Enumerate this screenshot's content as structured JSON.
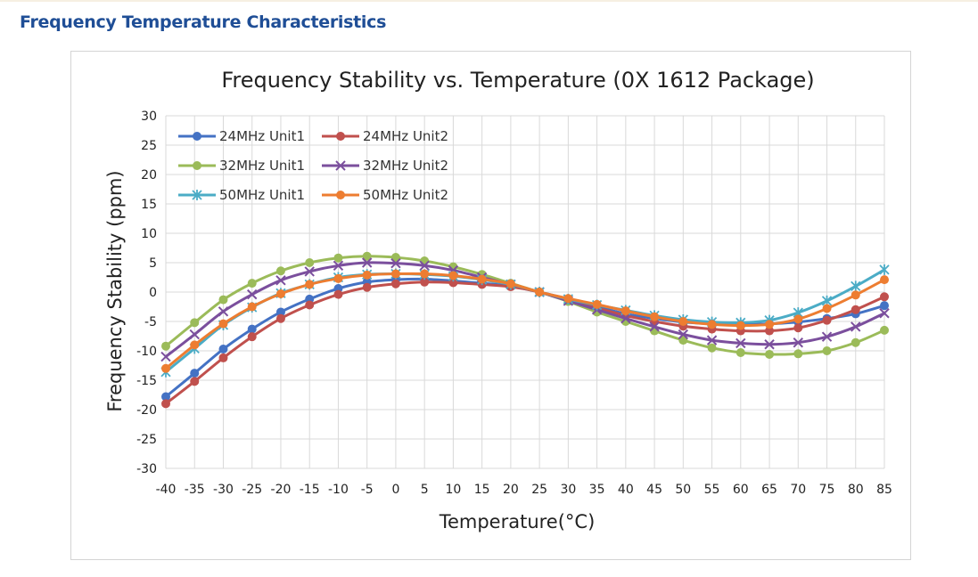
{
  "section": {
    "title": "Frequency Temperature Characteristics"
  },
  "chart_data": {
    "type": "line",
    "title": "Frequency Stability vs. Temperature (0X 1612 Package)",
    "xlabel": "Temperature(°C)",
    "ylabel": "Frequency Stability (ppm)",
    "ylim": [
      -30,
      30
    ],
    "yticks": [
      "30",
      "25",
      "20",
      "15",
      "10",
      "5",
      "0",
      "-5",
      "-10",
      "-15",
      "-20",
      "-25",
      "-30"
    ],
    "x": [
      -40,
      -35,
      -30,
      -25,
      -20,
      -15,
      -10,
      -5,
      0,
      5,
      10,
      15,
      20,
      25,
      30,
      35,
      40,
      45,
      50,
      55,
      60,
      65,
      70,
      75,
      80,
      85
    ],
    "grid": true,
    "legend_position": "top-left",
    "series": [
      {
        "name": "24MHz Unit1",
        "color": "#4472c4",
        "marker": "circle",
        "values": [
          -17.8,
          -13.8,
          -9.7,
          -6.3,
          -3.4,
          -1.2,
          0.6,
          1.7,
          2.1,
          2.2,
          1.9,
          1.5,
          1.0,
          0.0,
          -1.2,
          -2.5,
          -3.7,
          -4.5,
          -5.1,
          -5.4,
          -5.5,
          -5.4,
          -5.1,
          -4.5,
          -3.7,
          -2.3
        ]
      },
      {
        "name": "24MHz Unit2",
        "color": "#c0504d",
        "marker": "circle",
        "values": [
          -19.0,
          -15.2,
          -11.2,
          -7.6,
          -4.5,
          -2.2,
          -0.4,
          0.8,
          1.4,
          1.7,
          1.6,
          1.3,
          0.9,
          0.0,
          -1.4,
          -2.7,
          -4.0,
          -5.0,
          -5.8,
          -6.3,
          -6.6,
          -6.6,
          -6.1,
          -4.8,
          -3.0,
          -0.8
        ]
      },
      {
        "name": "32MHz Unit1",
        "color": "#9bbb59",
        "marker": "circle",
        "values": [
          -9.2,
          -5.2,
          -1.3,
          1.5,
          3.6,
          5.0,
          5.8,
          6.1,
          5.9,
          5.3,
          4.3,
          3.0,
          1.5,
          0.0,
          -1.6,
          -3.4,
          -5.0,
          -6.6,
          -8.2,
          -9.5,
          -10.3,
          -10.6,
          -10.5,
          -10.0,
          -8.6,
          -6.5
        ]
      },
      {
        "name": "32MHz Unit2",
        "color": "#7b4f9d",
        "marker": "x",
        "values": [
          -11.0,
          -7.2,
          -3.3,
          -0.4,
          2.0,
          3.5,
          4.5,
          5.0,
          4.9,
          4.5,
          3.7,
          2.5,
          1.3,
          0.0,
          -1.5,
          -3.0,
          -4.5,
          -5.9,
          -7.2,
          -8.2,
          -8.7,
          -8.9,
          -8.6,
          -7.6,
          -5.9,
          -3.6
        ]
      },
      {
        "name": "50MHz Unit1",
        "color": "#4bacc6",
        "marker": "star",
        "values": [
          -13.6,
          -9.6,
          -5.6,
          -2.6,
          -0.2,
          1.3,
          2.5,
          3.0,
          3.1,
          3.0,
          2.7,
          2.1,
          1.3,
          0.0,
          -1.2,
          -2.2,
          -3.1,
          -4.0,
          -4.7,
          -5.1,
          -5.2,
          -4.8,
          -3.5,
          -1.5,
          1.0,
          3.8
        ]
      },
      {
        "name": "50MHz Unit2",
        "color": "#ed7d31",
        "marker": "circle",
        "values": [
          -13.0,
          -9.0,
          -5.4,
          -2.5,
          -0.3,
          1.3,
          2.3,
          2.9,
          3.1,
          3.1,
          2.8,
          2.2,
          1.4,
          0.0,
          -1.1,
          -2.1,
          -3.2,
          -4.2,
          -5.0,
          -5.5,
          -5.7,
          -5.5,
          -4.6,
          -2.8,
          -0.5,
          2.1
        ]
      }
    ]
  }
}
